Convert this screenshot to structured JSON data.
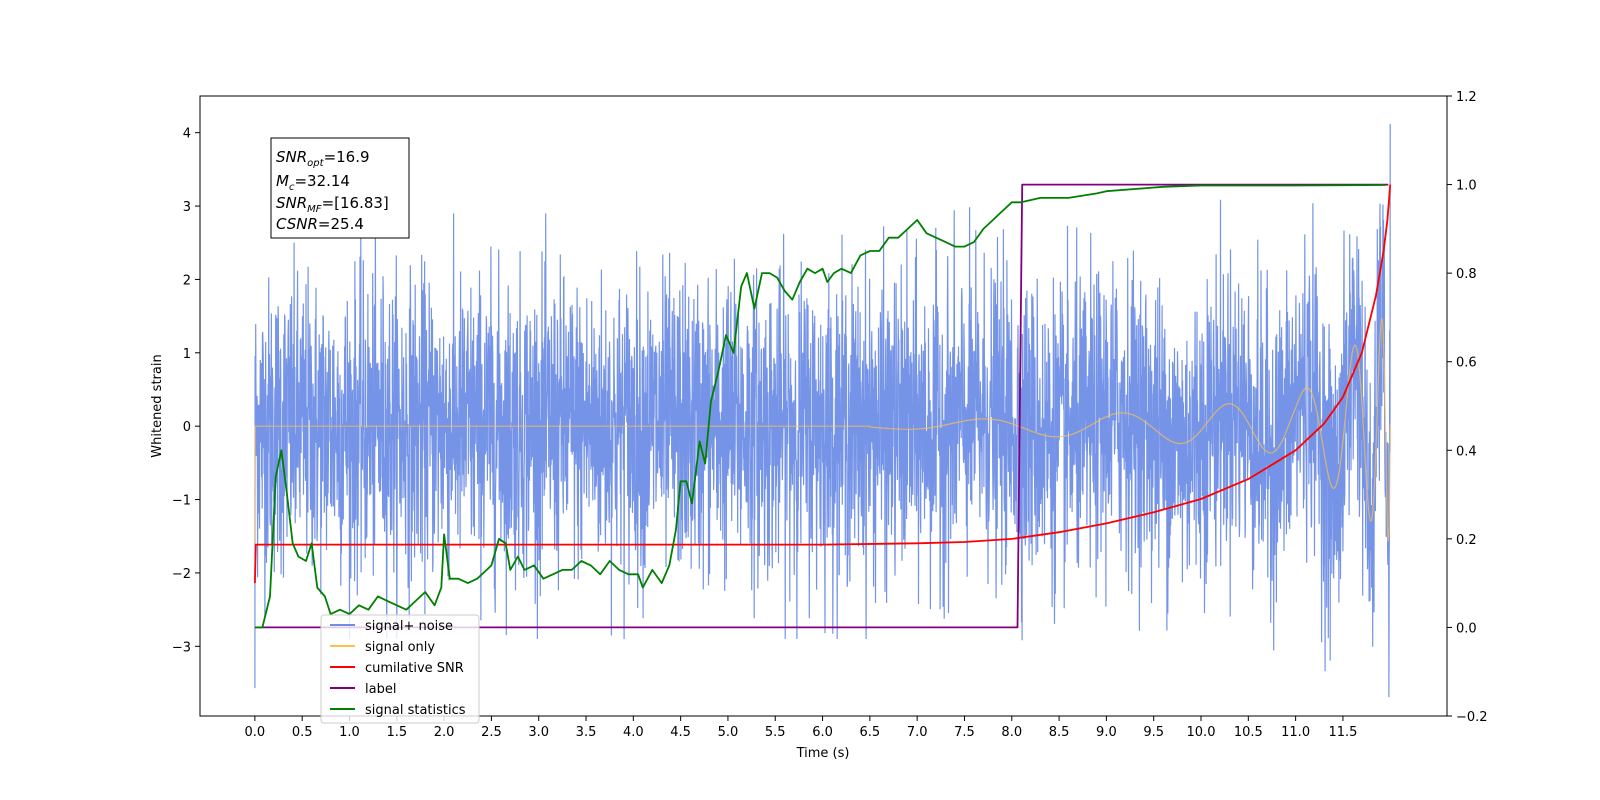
{
  "chart_data": {
    "type": "line",
    "xlabel": "Time (s)",
    "ylabel": "Whitened strain",
    "xlim": [
      -0.58,
      12.6
    ],
    "ylim": [
      -3.95,
      4.5
    ],
    "y2lim": [
      -0.2,
      1.2
    ],
    "x_ticks": [
      "0.0",
      "0.5",
      "1.0",
      "1.5",
      "2.0",
      "2.5",
      "3.0",
      "3.5",
      "4.0",
      "4.5",
      "5.0",
      "5.5",
      "6.0",
      "6.5",
      "7.0",
      "7.5",
      "8.0",
      "8.5",
      "9.0",
      "9.5",
      "10.0",
      "10.5",
      "11.0",
      "11.5"
    ],
    "y_ticks": [
      "−3",
      "−2",
      "−1",
      "0",
      "1",
      "2",
      "3",
      "4"
    ],
    "y2_ticks": [
      "−0.2",
      "0.0",
      "0.2",
      "0.4",
      "0.6",
      "0.8",
      "1.0",
      "1.2"
    ],
    "annotation": [
      {
        "base": "SNR",
        "sub": "opt",
        "value": "=16.9"
      },
      {
        "base": "M",
        "sub": "c",
        "value": "=32.14"
      },
      {
        "base": "SNR",
        "sub": "MF",
        "value": "=[16.83]"
      },
      {
        "base": "CSNR",
        "sub": "",
        "value": "=25.4"
      }
    ],
    "legend": {
      "position": "lower-left",
      "entries": [
        {
          "label": "signal+ noise",
          "color": "#6e8ee6"
        },
        {
          "label": "signal only",
          "color": "#ffc04d"
        },
        {
          "label": "cumilative SNR",
          "color": "#ff0000"
        },
        {
          "label": "label",
          "color": "#800080"
        },
        {
          "label": "signal statistics",
          "color": "#008000"
        }
      ]
    },
    "series": [
      {
        "name": "signal+ noise",
        "axis": "left",
        "color": "#6e8ee6",
        "generated": true,
        "duration": 12.0,
        "amplitude_range": [
          -3.57,
          4.12
        ]
      },
      {
        "name": "signal only",
        "axis": "left",
        "color": "#ffc04d",
        "generated": true,
        "chirp_amplitude": [
          [
            6.5,
            0.02
          ],
          [
            8.0,
            0.12
          ],
          [
            9.5,
            0.2
          ],
          [
            11.0,
            0.4
          ],
          [
            11.8,
            1.3
          ],
          [
            12.0,
            1.6
          ]
        ]
      },
      {
        "name": "cumilative SNR",
        "axis": "right",
        "color": "#ff0000",
        "points": [
          [
            0.0,
            0.1
          ],
          [
            0.01,
            0.187
          ],
          [
            6.0,
            0.187
          ],
          [
            7.0,
            0.19
          ],
          [
            7.5,
            0.193
          ],
          [
            8.0,
            0.2
          ],
          [
            8.5,
            0.215
          ],
          [
            9.0,
            0.235
          ],
          [
            9.5,
            0.26
          ],
          [
            10.0,
            0.29
          ],
          [
            10.5,
            0.335
          ],
          [
            11.0,
            0.4
          ],
          [
            11.3,
            0.46
          ],
          [
            11.5,
            0.52
          ],
          [
            11.7,
            0.62
          ],
          [
            11.85,
            0.75
          ],
          [
            11.93,
            0.85
          ],
          [
            11.97,
            0.92
          ],
          [
            12.0,
            1.0
          ]
        ]
      },
      {
        "name": "label",
        "axis": "right",
        "color": "#800080",
        "points": [
          [
            0.0,
            0.0
          ],
          [
            8.06,
            0.0
          ],
          [
            8.11,
            1.0
          ],
          [
            11.98,
            1.0
          ]
        ]
      },
      {
        "name": "signal statistics",
        "axis": "right",
        "color": "#008000",
        "points": [
          [
            0.0,
            0.0
          ],
          [
            0.08,
            0.0
          ],
          [
            0.16,
            0.07
          ],
          [
            0.22,
            0.34
          ],
          [
            0.28,
            0.4
          ],
          [
            0.34,
            0.3
          ],
          [
            0.4,
            0.19
          ],
          [
            0.46,
            0.16
          ],
          [
            0.54,
            0.15
          ],
          [
            0.6,
            0.19
          ],
          [
            0.66,
            0.09
          ],
          [
            0.74,
            0.07
          ],
          [
            0.8,
            0.03
          ],
          [
            0.9,
            0.04
          ],
          [
            1.0,
            0.03
          ],
          [
            1.1,
            0.05
          ],
          [
            1.2,
            0.04
          ],
          [
            1.3,
            0.07
          ],
          [
            1.4,
            0.06
          ],
          [
            1.5,
            0.05
          ],
          [
            1.6,
            0.04
          ],
          [
            1.7,
            0.06
          ],
          [
            1.8,
            0.08
          ],
          [
            1.9,
            0.05
          ],
          [
            1.97,
            0.09
          ],
          [
            2.0,
            0.21
          ],
          [
            2.06,
            0.11
          ],
          [
            2.15,
            0.11
          ],
          [
            2.25,
            0.1
          ],
          [
            2.35,
            0.11
          ],
          [
            2.45,
            0.13
          ],
          [
            2.5,
            0.14
          ],
          [
            2.58,
            0.2
          ],
          [
            2.65,
            0.19
          ],
          [
            2.7,
            0.13
          ],
          [
            2.78,
            0.16
          ],
          [
            2.85,
            0.13
          ],
          [
            2.95,
            0.14
          ],
          [
            3.05,
            0.11
          ],
          [
            3.15,
            0.12
          ],
          [
            3.25,
            0.13
          ],
          [
            3.35,
            0.13
          ],
          [
            3.45,
            0.15
          ],
          [
            3.55,
            0.14
          ],
          [
            3.65,
            0.12
          ],
          [
            3.75,
            0.15
          ],
          [
            3.85,
            0.13
          ],
          [
            3.95,
            0.12
          ],
          [
            4.05,
            0.12
          ],
          [
            4.1,
            0.09
          ],
          [
            4.2,
            0.13
          ],
          [
            4.3,
            0.1
          ],
          [
            4.38,
            0.14
          ],
          [
            4.45,
            0.22
          ],
          [
            4.5,
            0.33
          ],
          [
            4.56,
            0.33
          ],
          [
            4.62,
            0.28
          ],
          [
            4.7,
            0.42
          ],
          [
            4.76,
            0.37
          ],
          [
            4.82,
            0.51
          ],
          [
            4.9,
            0.58
          ],
          [
            4.98,
            0.66
          ],
          [
            5.06,
            0.62
          ],
          [
            5.14,
            0.77
          ],
          [
            5.2,
            0.8
          ],
          [
            5.28,
            0.72
          ],
          [
            5.36,
            0.8
          ],
          [
            5.44,
            0.8
          ],
          [
            5.52,
            0.79
          ],
          [
            5.6,
            0.76
          ],
          [
            5.68,
            0.74
          ],
          [
            5.76,
            0.78
          ],
          [
            5.84,
            0.81
          ],
          [
            5.92,
            0.8
          ],
          [
            6.0,
            0.81
          ],
          [
            6.05,
            0.78
          ],
          [
            6.12,
            0.8
          ],
          [
            6.2,
            0.81
          ],
          [
            6.3,
            0.8
          ],
          [
            6.4,
            0.84
          ],
          [
            6.5,
            0.85
          ],
          [
            6.6,
            0.85
          ],
          [
            6.7,
            0.88
          ],
          [
            6.8,
            0.88
          ],
          [
            6.9,
            0.9
          ],
          [
            7.0,
            0.92
          ],
          [
            7.1,
            0.89
          ],
          [
            7.2,
            0.88
          ],
          [
            7.3,
            0.87
          ],
          [
            7.4,
            0.86
          ],
          [
            7.5,
            0.86
          ],
          [
            7.6,
            0.87
          ],
          [
            7.7,
            0.9
          ],
          [
            7.8,
            0.92
          ],
          [
            7.9,
            0.94
          ],
          [
            8.0,
            0.96
          ],
          [
            8.1,
            0.96
          ],
          [
            8.3,
            0.97
          ],
          [
            8.6,
            0.97
          ],
          [
            8.9,
            0.98
          ],
          [
            9.0,
            0.985
          ],
          [
            9.3,
            0.99
          ],
          [
            9.6,
            0.995
          ],
          [
            10.0,
            0.998
          ],
          [
            11.0,
            0.998
          ],
          [
            11.95,
            0.999
          ]
        ]
      }
    ]
  }
}
